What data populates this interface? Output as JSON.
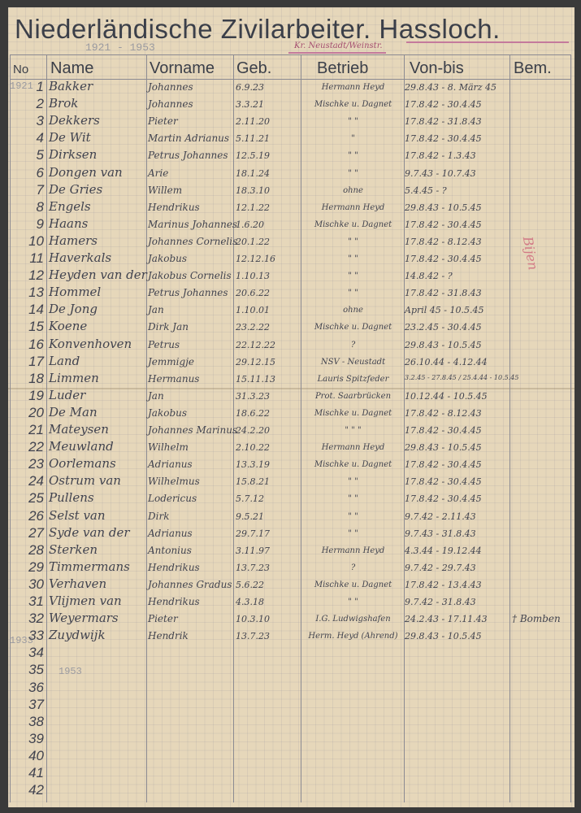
{
  "title": "Niederländische Zivilarbeiter. Hassloch.",
  "years_note": "1921 - 1953",
  "stamp_note": "Kr. Neustadt/Weinstr.",
  "margin_notes": {
    "top": "1921",
    "bottom_row": "1933",
    "footer": "1953"
  },
  "red_note": "Bijen",
  "columns": [
    "No",
    "Name",
    "Vorname",
    "Geb.",
    "Betrieb",
    "Von-bis",
    "Bem."
  ],
  "rows": [
    {
      "no": "1",
      "name": "Bakker",
      "vorname": "Johannes",
      "geb": "6.9.23",
      "betrieb": "Hermann Heyd",
      "vonbis": "29.8.43 - 8. März 45",
      "bem": ""
    },
    {
      "no": "2",
      "name": "Brok",
      "vorname": "Johannes",
      "geb": "3.3.21",
      "betrieb": "Mischke u. Dagnet",
      "vonbis": "17.8.42 - 30.4.45",
      "bem": ""
    },
    {
      "no": "3",
      "name": "Dekkers",
      "vorname": "Pieter",
      "geb": "2.11.20",
      "betrieb": "\"   \"",
      "vonbis": "17.8.42 - 31.8.43",
      "bem": ""
    },
    {
      "no": "4",
      "name": "De Wit",
      "vorname": "Martin Adrianus",
      "geb": "5.11.21",
      "betrieb": "\"",
      "vonbis": "17.8.42 - 30.4.45",
      "bem": ""
    },
    {
      "no": "5",
      "name": "Dirksen",
      "vorname": "Petrus Johannes",
      "geb": "12.5.19",
      "betrieb": "\"   \"",
      "vonbis": "17.8.42 - 1.3.43",
      "bem": ""
    },
    {
      "no": "6",
      "name": "Dongen van",
      "vorname": "Arie",
      "geb": "18.1.24",
      "betrieb": "\"   \"",
      "vonbis": "9.7.43 - 10.7.43",
      "bem": ""
    },
    {
      "no": "7",
      "name": "De Gries",
      "vorname": "Willem",
      "geb": "18.3.10",
      "betrieb": "ohne",
      "vonbis": "5.4.45 - ?",
      "bem": ""
    },
    {
      "no": "8",
      "name": "Engels",
      "vorname": "Hendrikus",
      "geb": "12.1.22",
      "betrieb": "Hermann Heyd",
      "vonbis": "29.8.43 - 10.5.45",
      "bem": ""
    },
    {
      "no": "9",
      "name": "Haans",
      "vorname": "Marinus Johannes",
      "geb": "1.6.20",
      "betrieb": "Mischke u. Dagnet",
      "vonbis": "17.8.42 - 30.4.45",
      "bem": ""
    },
    {
      "no": "10",
      "name": "Hamers",
      "vorname": "Johannes Cornelis",
      "geb": "20.1.22",
      "betrieb": "\"   \"",
      "vonbis": "17.8.42 - 8.12.43",
      "bem": ""
    },
    {
      "no": "11",
      "name": "Haverkals",
      "vorname": "Jakobus",
      "geb": "12.12.16",
      "betrieb": "\"   \"",
      "vonbis": "17.8.42 - 30.4.45",
      "bem": ""
    },
    {
      "no": "12",
      "name": "Heyden van der",
      "vorname": "Jakobus Cornelis",
      "geb": "1.10.13",
      "betrieb": "\"   \"",
      "vonbis": "14.8.42 - ?",
      "bem": ""
    },
    {
      "no": "13",
      "name": "Hommel",
      "vorname": "Petrus Johannes",
      "geb": "20.6.22",
      "betrieb": "\"   \"",
      "vonbis": "17.8.42 - 31.8.43",
      "bem": ""
    },
    {
      "no": "14",
      "name": "De Jong",
      "vorname": "Jan",
      "geb": "1.10.01",
      "betrieb": "ohne",
      "vonbis": "April 45 - 10.5.45",
      "bem": ""
    },
    {
      "no": "15",
      "name": "Koene",
      "vorname": "Dirk Jan",
      "geb": "23.2.22",
      "betrieb": "Mischke u. Dagnet",
      "vonbis": "23.2.45 - 30.4.45",
      "bem": ""
    },
    {
      "no": "16",
      "name": "Konvenhoven",
      "vorname": "Petrus",
      "geb": "22.12.22",
      "betrieb": "?",
      "vonbis": "29.8.43 - 10.5.45",
      "bem": ""
    },
    {
      "no": "17",
      "name": "Land",
      "vorname": "Jemmigje",
      "geb": "29.12.15",
      "betrieb": "NSV - Neustadt",
      "vonbis": "26.10.44 - 4.12.44",
      "bem": ""
    },
    {
      "no": "18",
      "name": "Limmen",
      "vorname": "Hermanus",
      "geb": "15.11.13",
      "betrieb": "Lauris Spitzfeder",
      "vonbis": "3.2.45 - 27.8.45 / 25.4.44 - 10.5.45",
      "bem": ""
    },
    {
      "no": "19",
      "name": "Luder",
      "vorname": "Jan",
      "geb": "31.3.23",
      "betrieb": "Prot. Saarbrücken",
      "vonbis": "10.12.44 - 10.5.45",
      "bem": ""
    },
    {
      "no": "20",
      "name": "De Man",
      "vorname": "Jakobus",
      "geb": "18.6.22",
      "betrieb": "Mischke u. Dagnet",
      "vonbis": "17.8.42 - 8.12.43",
      "bem": ""
    },
    {
      "no": "21",
      "name": "Mateysen",
      "vorname": "Johannes Marinus",
      "geb": "24.2.20",
      "betrieb": "\"   \"   \"",
      "vonbis": "17.8.42 - 30.4.45",
      "bem": ""
    },
    {
      "no": "22",
      "name": "Meuwland",
      "vorname": "Wilhelm",
      "geb": "2.10.22",
      "betrieb": "Hermann Heyd",
      "vonbis": "29.8.43 - 10.5.45",
      "bem": ""
    },
    {
      "no": "23",
      "name": "Oorlemans",
      "vorname": "Adrianus",
      "geb": "13.3.19",
      "betrieb": "Mischke u. Dagnet",
      "vonbis": "17.8.42 - 30.4.45",
      "bem": ""
    },
    {
      "no": "24",
      "name": "Ostrum van",
      "vorname": "Wilhelmus",
      "geb": "15.8.21",
      "betrieb": "\"   \"",
      "vonbis": "17.8.42 - 30.4.45",
      "bem": ""
    },
    {
      "no": "25",
      "name": "Pullens",
      "vorname": "Lodericus",
      "geb": "5.7.12",
      "betrieb": "\"   \"",
      "vonbis": "17.8.42 - 30.4.45",
      "bem": ""
    },
    {
      "no": "26",
      "name": "Selst van",
      "vorname": "Dirk",
      "geb": "9.5.21",
      "betrieb": "\"   \"",
      "vonbis": "9.7.42 - 2.11.43",
      "bem": ""
    },
    {
      "no": "27",
      "name": "Syde van der",
      "vorname": "Adrianus",
      "geb": "29.7.17",
      "betrieb": "\"   \"",
      "vonbis": "9.7.43 - 31.8.43",
      "bem": ""
    },
    {
      "no": "28",
      "name": "Sterken",
      "vorname": "Antonius",
      "geb": "3.11.97",
      "betrieb": "Hermann Heyd",
      "vonbis": "4.3.44 - 19.12.44",
      "bem": ""
    },
    {
      "no": "29",
      "name": "Timmermans",
      "vorname": "Hendrikus",
      "geb": "13.7.23",
      "betrieb": "?",
      "vonbis": "9.7.42 - 29.7.43",
      "bem": ""
    },
    {
      "no": "30",
      "name": "Verhaven",
      "vorname": "Johannes Gradus",
      "geb": "5.6.22",
      "betrieb": "Mischke u. Dagnet",
      "vonbis": "17.8.42 - 13.4.43",
      "bem": ""
    },
    {
      "no": "31",
      "name": "Vlijmen van",
      "vorname": "Hendrikus",
      "geb": "4.3.18",
      "betrieb": "\"   \"",
      "vonbis": "9.7.42 - 31.8.43",
      "bem": ""
    },
    {
      "no": "32",
      "name": "Weyermars",
      "vorname": "Pieter",
      "geb": "10.3.10",
      "betrieb": "I.G. Ludwigshafen",
      "vonbis": "24.2.43 - 17.11.43",
      "bem": "† Bomben"
    },
    {
      "no": "33",
      "name": "Zuydwijk",
      "vorname": "Hendrik",
      "geb": "13.7.23",
      "betrieb": "Herm. Heyd (Ahrend)",
      "vonbis": "29.8.43 - 10.5.45",
      "bem": ""
    },
    {
      "no": "34",
      "name": "",
      "vorname": "",
      "geb": "",
      "betrieb": "",
      "vonbis": "",
      "bem": ""
    },
    {
      "no": "35",
      "name": "",
      "vorname": "",
      "geb": "",
      "betrieb": "",
      "vonbis": "",
      "bem": ""
    },
    {
      "no": "36",
      "name": "",
      "vorname": "",
      "geb": "",
      "betrieb": "",
      "vonbis": "",
      "bem": ""
    },
    {
      "no": "37",
      "name": "",
      "vorname": "",
      "geb": "",
      "betrieb": "",
      "vonbis": "",
      "bem": ""
    },
    {
      "no": "38",
      "name": "",
      "vorname": "",
      "geb": "",
      "betrieb": "",
      "vonbis": "",
      "bem": ""
    },
    {
      "no": "39",
      "name": "",
      "vorname": "",
      "geb": "",
      "betrieb": "",
      "vonbis": "",
      "bem": ""
    },
    {
      "no": "40",
      "name": "",
      "vorname": "",
      "geb": "",
      "betrieb": "",
      "vonbis": "",
      "bem": ""
    },
    {
      "no": "41",
      "name": "",
      "vorname": "",
      "geb": "",
      "betrieb": "",
      "vonbis": "",
      "bem": ""
    },
    {
      "no": "42",
      "name": "",
      "vorname": "",
      "geb": "",
      "betrieb": "",
      "vonbis": "",
      "bem": ""
    }
  ]
}
